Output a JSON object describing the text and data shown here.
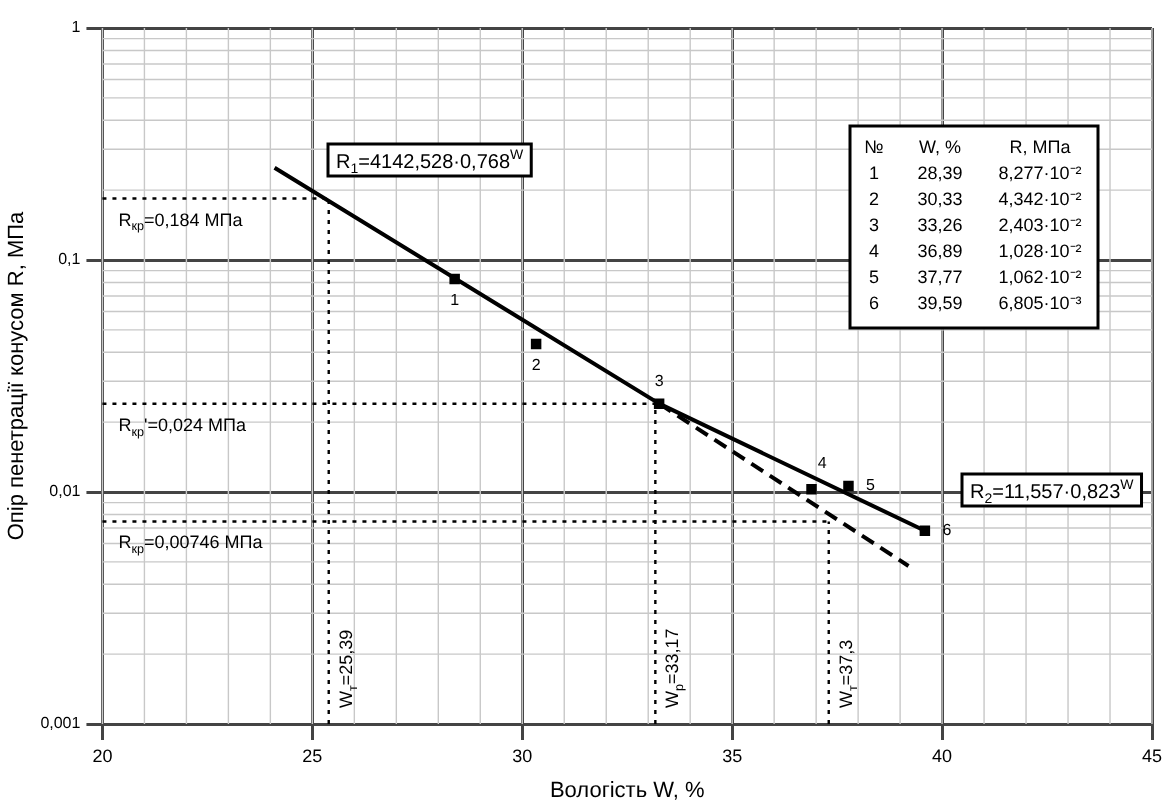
{
  "chart_data": {
    "type": "scatter",
    "xlabel": "Вологість W, %",
    "ylabel": "Опір пенетрації конусом R, МПа",
    "xlim": [
      20,
      45
    ],
    "xticks": [
      20,
      25,
      30,
      35,
      40,
      45
    ],
    "ylim": [
      0.001,
      1
    ],
    "yticks": [
      {
        "value": 0.001,
        "label": "0,001"
      },
      {
        "value": 0.01,
        "label": "0,01"
      },
      {
        "value": 0.1,
        "label": "0,1"
      },
      {
        "value": 1,
        "label": "1"
      }
    ],
    "log": "y",
    "grid": true,
    "legend": false,
    "series": [
      {
        "color": "#000000",
        "marker": "square",
        "x": [
          28.39,
          30.33,
          33.26,
          36.89,
          37.77,
          39.59
        ],
        "values": [
          0.08277,
          0.04342,
          0.02403,
          0.01028,
          0.01062,
          0.006805
        ]
      },
      {
        "type": "line",
        "color": "#000000",
        "marker": "none",
        "line_style": "solid",
        "x": [
          24.1,
          33.26,
          39.59
        ],
        "values": [
          0.25,
          0.02403,
          0.006805
        ]
      },
      {
        "type": "line",
        "color": "#000000",
        "marker": "none",
        "line_style": "dashed",
        "x": [
          33.26,
          39.2
        ],
        "values": [
          0.02403,
          0.0048
        ]
      }
    ],
    "ref_lines": [
      {
        "axis": "y",
        "value": 0.184,
        "label": "R$_{кр}$=0,184 МПа",
        "line_style": "dotted"
      },
      {
        "axis": "y",
        "value": 0.024,
        "label": "R$_{кр}$'=0,024 МПа",
        "line_style": "dotted"
      },
      {
        "axis": "y",
        "value": 0.00746,
        "label": "R$_{кр}$=0,00746 МПа",
        "line_style": "dotted"
      },
      {
        "axis": "x",
        "value": 25.39,
        "label": "W$_{т}$=25,39",
        "line_style": "dotted"
      },
      {
        "axis": "x",
        "value": 33.17,
        "label": "W$_{р}$=33,17",
        "line_style": "dotted"
      },
      {
        "axis": "x",
        "value": 37.3,
        "label": "W$_{т}$=37,3",
        "line_style": "dotted"
      }
    ],
    "annotations": [
      "R$_{1}$=4142,528·0,768$^{W}$",
      "R$_{2}$=11,557·0,823$^{W}$",
      "№",
      "W, %",
      "R, МПа",
      {
        "text": "1",
        "x": 28.39,
        "y": 0.08277
      },
      {
        "text": "2",
        "x": 30.33,
        "y": 0.04342
      },
      {
        "text": "3",
        "x": 33.26,
        "y": 0.02403
      },
      {
        "text": "4",
        "x": 36.89,
        "y": 0.01028
      },
      {
        "text": "5",
        "x": 37.77,
        "y": 0.01062
      },
      {
        "text": "6",
        "x": 39.59,
        "y": 0.006805
      },
      "1",
      "28,39",
      "8,277·10⁻²",
      "2",
      "30,33",
      "4,342·10⁻²",
      "3",
      "33,26",
      "2,403·10⁻²",
      "4",
      "36,89",
      "1,028·10⁻²",
      "5",
      "37,77",
      "1,062·10⁻²",
      "6",
      "39,59",
      "6,805·10⁻³"
    ]
  }
}
